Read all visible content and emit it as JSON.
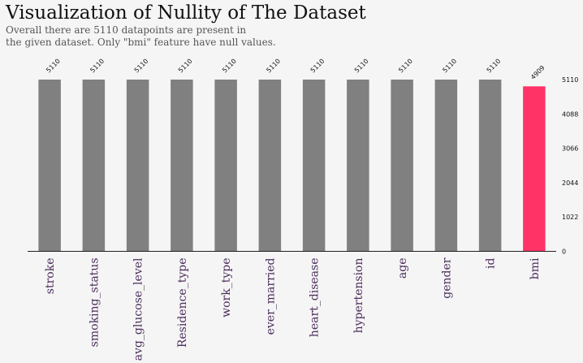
{
  "chart_data": {
    "type": "bar",
    "title": "Visualization of Nullity of The Dataset",
    "subtitle": "Overall there are 5110 datapoints are present in\nthe given dataset. Only \"bmi\" feature have null values.",
    "categories": [
      "stroke",
      "smoking_status",
      "avg_glucose_level",
      "Residence_type",
      "work_type",
      "ever_married",
      "heart_disease",
      "hypertension",
      "age",
      "gender",
      "id",
      "bmi"
    ],
    "values": [
      5110,
      5110,
      5110,
      5110,
      5110,
      5110,
      5110,
      5110,
      5110,
      5110,
      5110,
      4909
    ],
    "value_labels": [
      "5110",
      "5110",
      "5110",
      "5110",
      "5110",
      "5110",
      "5110",
      "5110",
      "5110",
      "5110",
      "5110",
      "4909"
    ],
    "yticks": [
      0,
      1022,
      2044,
      3066,
      4088,
      5110
    ],
    "ytick_labels": [
      "0",
      "1022",
      "2044",
      "3066",
      "4088",
      "5110"
    ],
    "ylim": [
      0,
      5110
    ],
    "grid": false,
    "colors": {
      "default": "#808080",
      "highlight": "#ff3366",
      "highlight_category": "bmi",
      "label": "#4a2c5a",
      "background": "#f5f5f5"
    }
  }
}
